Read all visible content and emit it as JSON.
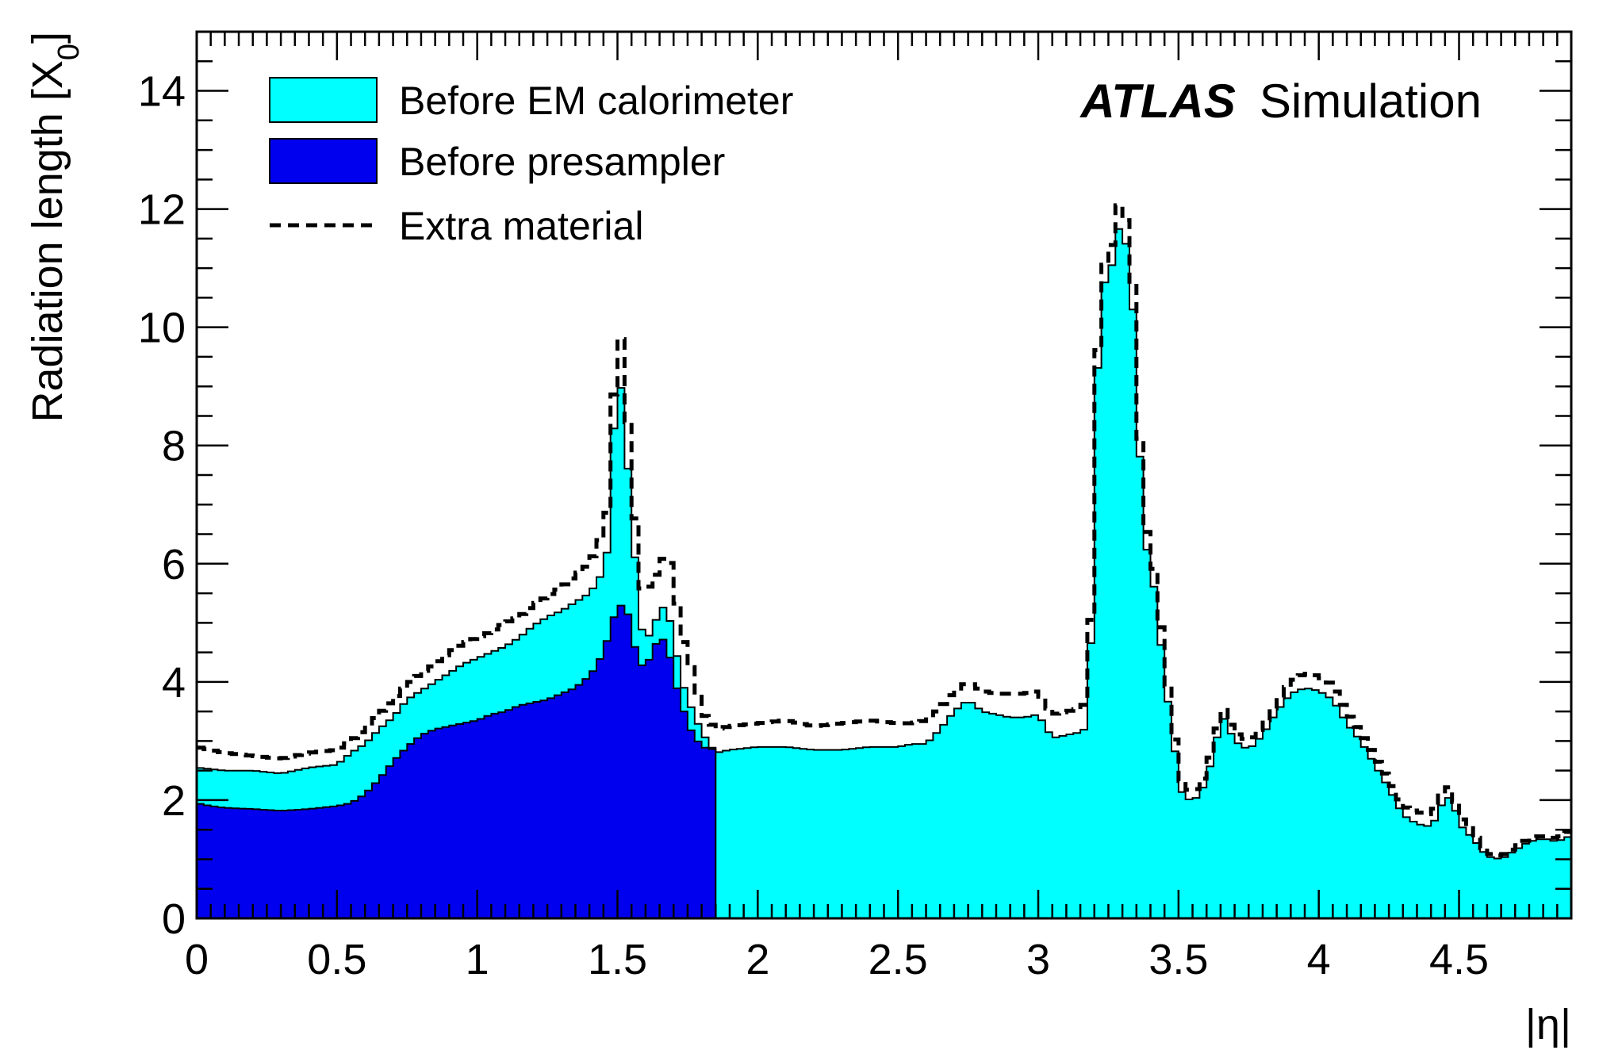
{
  "chart_data": {
    "type": "area",
    "x_label": "|η|",
    "y_label": "Radiation length [X",
    "y_label_sub": "0",
    "y_label_end": "]",
    "xlim": [
      0,
      4.9
    ],
    "ylim": [
      0,
      15
    ],
    "x_ticks": [
      0,
      0.5,
      1,
      1.5,
      2,
      2.5,
      3,
      3.5,
      4,
      4.5
    ],
    "x_tick_labels": [
      "0",
      "0.5",
      "1",
      "1.5",
      "2",
      "2.5",
      "3",
      "3.5",
      "4",
      "4.5"
    ],
    "y_ticks": [
      0,
      2,
      4,
      6,
      8,
      10,
      12,
      14
    ],
    "y_tick_labels": [
      "0",
      "2",
      "4",
      "6",
      "8",
      "10",
      "12",
      "14"
    ],
    "legend_position": "top-left",
    "annotation_bold": "ATLAS",
    "annotation_normal": "Simulation",
    "colors": {
      "before_em": "#00ffff",
      "before_presampler": "#0000ee",
      "extra": "#000000"
    },
    "series": [
      {
        "name": "Before EM calorimeter",
        "style": "filled",
        "points": [
          [
            0,
            2.55
          ],
          [
            0.1,
            2.5
          ],
          [
            0.2,
            2.5
          ],
          [
            0.3,
            2.45
          ],
          [
            0.4,
            2.55
          ],
          [
            0.5,
            2.6
          ],
          [
            0.55,
            2.8
          ],
          [
            0.6,
            2.95
          ],
          [
            0.65,
            3.2
          ],
          [
            0.7,
            3.4
          ],
          [
            0.75,
            3.7
          ],
          [
            0.8,
            3.85
          ],
          [
            0.85,
            4.0
          ],
          [
            0.9,
            4.15
          ],
          [
            0.95,
            4.3
          ],
          [
            1.0,
            4.4
          ],
          [
            1.05,
            4.5
          ],
          [
            1.1,
            4.6
          ],
          [
            1.15,
            4.75
          ],
          [
            1.2,
            4.95
          ],
          [
            1.25,
            5.1
          ],
          [
            1.3,
            5.2
          ],
          [
            1.35,
            5.35
          ],
          [
            1.4,
            5.5
          ],
          [
            1.43,
            5.7
          ],
          [
            1.46,
            6.0
          ],
          [
            1.48,
            7.5
          ],
          [
            1.5,
            9.6
          ],
          [
            1.52,
            8.6
          ],
          [
            1.55,
            6.9
          ],
          [
            1.58,
            5.0
          ],
          [
            1.6,
            4.7
          ],
          [
            1.63,
            4.9
          ],
          [
            1.65,
            5.3
          ],
          [
            1.68,
            5.2
          ],
          [
            1.7,
            4.75
          ],
          [
            1.73,
            4.0
          ],
          [
            1.76,
            3.6
          ],
          [
            1.8,
            3.15
          ],
          [
            1.85,
            2.8
          ],
          [
            1.9,
            2.85
          ],
          [
            2.0,
            2.9
          ],
          [
            2.1,
            2.9
          ],
          [
            2.2,
            2.85
          ],
          [
            2.3,
            2.85
          ],
          [
            2.4,
            2.9
          ],
          [
            2.5,
            2.9
          ],
          [
            2.55,
            2.95
          ],
          [
            2.6,
            2.95
          ],
          [
            2.65,
            3.2
          ],
          [
            2.7,
            3.5
          ],
          [
            2.75,
            3.7
          ],
          [
            2.8,
            3.5
          ],
          [
            2.85,
            3.45
          ],
          [
            2.9,
            3.4
          ],
          [
            2.95,
            3.4
          ],
          [
            3.0,
            3.45
          ],
          [
            3.05,
            3.05
          ],
          [
            3.1,
            3.1
          ],
          [
            3.15,
            3.15
          ],
          [
            3.18,
            3.25
          ],
          [
            3.2,
            7.0
          ],
          [
            3.22,
            10.7
          ],
          [
            3.25,
            10.8
          ],
          [
            3.28,
            11.4
          ],
          [
            3.3,
            12.1
          ],
          [
            3.32,
            11.0
          ],
          [
            3.34,
            10.2
          ],
          [
            3.36,
            8.0
          ],
          [
            3.38,
            6.5
          ],
          [
            3.4,
            5.8
          ],
          [
            3.42,
            5.5
          ],
          [
            3.45,
            4.0
          ],
          [
            3.48,
            3.2
          ],
          [
            3.5,
            2.2
          ],
          [
            3.55,
            1.95
          ],
          [
            3.6,
            2.3
          ],
          [
            3.63,
            2.95
          ],
          [
            3.66,
            3.4
          ],
          [
            3.7,
            3.0
          ],
          [
            3.75,
            2.85
          ],
          [
            3.8,
            3.1
          ],
          [
            3.85,
            3.5
          ],
          [
            3.9,
            3.8
          ],
          [
            3.95,
            3.9
          ],
          [
            4.0,
            3.85
          ],
          [
            4.05,
            3.7
          ],
          [
            4.1,
            3.3
          ],
          [
            4.15,
            3.0
          ],
          [
            4.2,
            2.6
          ],
          [
            4.25,
            2.2
          ],
          [
            4.3,
            1.75
          ],
          [
            4.35,
            1.6
          ],
          [
            4.4,
            1.55
          ],
          [
            4.43,
            1.8
          ],
          [
            4.45,
            2.1
          ],
          [
            4.48,
            1.95
          ],
          [
            4.5,
            1.6
          ],
          [
            4.55,
            1.35
          ],
          [
            4.6,
            1.05
          ],
          [
            4.65,
            1.0
          ],
          [
            4.7,
            1.15
          ],
          [
            4.75,
            1.3
          ],
          [
            4.8,
            1.35
          ],
          [
            4.85,
            1.3
          ],
          [
            4.9,
            1.4
          ]
        ]
      },
      {
        "name": "Before presampler",
        "style": "filled",
        "points": [
          [
            0,
            1.95
          ],
          [
            0.05,
            1.9
          ],
          [
            0.1,
            1.87
          ],
          [
            0.2,
            1.85
          ],
          [
            0.3,
            1.82
          ],
          [
            0.4,
            1.85
          ],
          [
            0.5,
            1.9
          ],
          [
            0.55,
            1.95
          ],
          [
            0.6,
            2.1
          ],
          [
            0.65,
            2.35
          ],
          [
            0.7,
            2.65
          ],
          [
            0.75,
            2.9
          ],
          [
            0.8,
            3.1
          ],
          [
            0.85,
            3.2
          ],
          [
            0.9,
            3.25
          ],
          [
            0.95,
            3.3
          ],
          [
            1.0,
            3.35
          ],
          [
            1.05,
            3.45
          ],
          [
            1.1,
            3.5
          ],
          [
            1.15,
            3.6
          ],
          [
            1.2,
            3.65
          ],
          [
            1.25,
            3.7
          ],
          [
            1.3,
            3.8
          ],
          [
            1.35,
            3.9
          ],
          [
            1.4,
            4.1
          ],
          [
            1.43,
            4.3
          ],
          [
            1.46,
            4.65
          ],
          [
            1.48,
            5.0
          ],
          [
            1.5,
            5.25
          ],
          [
            1.53,
            5.35
          ],
          [
            1.55,
            4.8
          ],
          [
            1.58,
            4.3
          ],
          [
            1.6,
            4.25
          ],
          [
            1.63,
            4.55
          ],
          [
            1.65,
            4.8
          ],
          [
            1.68,
            4.6
          ],
          [
            1.7,
            4.1
          ],
          [
            1.73,
            3.6
          ],
          [
            1.76,
            3.2
          ],
          [
            1.8,
            2.9
          ],
          [
            1.85,
            2.85
          ]
        ]
      },
      {
        "name": "Extra material",
        "style": "dashed",
        "points": [
          [
            0,
            2.9
          ],
          [
            0.1,
            2.8
          ],
          [
            0.2,
            2.75
          ],
          [
            0.3,
            2.7
          ],
          [
            0.4,
            2.8
          ],
          [
            0.5,
            2.85
          ],
          [
            0.55,
            3.0
          ],
          [
            0.6,
            3.2
          ],
          [
            0.65,
            3.45
          ],
          [
            0.7,
            3.7
          ],
          [
            0.75,
            3.95
          ],
          [
            0.8,
            4.15
          ],
          [
            0.85,
            4.3
          ],
          [
            0.9,
            4.5
          ],
          [
            0.95,
            4.65
          ],
          [
            1.0,
            4.75
          ],
          [
            1.05,
            4.85
          ],
          [
            1.1,
            5.0
          ],
          [
            1.15,
            5.1
          ],
          [
            1.2,
            5.3
          ],
          [
            1.25,
            5.45
          ],
          [
            1.3,
            5.6
          ],
          [
            1.35,
            5.8
          ],
          [
            1.4,
            6.0
          ],
          [
            1.43,
            6.3
          ],
          [
            1.46,
            6.7
          ],
          [
            1.48,
            8.0
          ],
          [
            1.5,
            10.3
          ],
          [
            1.52,
            9.5
          ],
          [
            1.55,
            7.6
          ],
          [
            1.58,
            5.6
          ],
          [
            1.6,
            5.55
          ],
          [
            1.63,
            5.7
          ],
          [
            1.65,
            6.0
          ],
          [
            1.68,
            6.2
          ],
          [
            1.7,
            5.7
          ],
          [
            1.73,
            4.8
          ],
          [
            1.76,
            4.3
          ],
          [
            1.8,
            3.5
          ],
          [
            1.85,
            3.2
          ],
          [
            1.9,
            3.25
          ],
          [
            2.0,
            3.3
          ],
          [
            2.1,
            3.35
          ],
          [
            2.2,
            3.25
          ],
          [
            2.3,
            3.3
          ],
          [
            2.4,
            3.35
          ],
          [
            2.5,
            3.3
          ],
          [
            2.55,
            3.3
          ],
          [
            2.6,
            3.35
          ],
          [
            2.65,
            3.55
          ],
          [
            2.7,
            3.85
          ],
          [
            2.75,
            4.0
          ],
          [
            2.8,
            3.85
          ],
          [
            2.85,
            3.8
          ],
          [
            2.9,
            3.8
          ],
          [
            2.95,
            3.8
          ],
          [
            3.0,
            3.85
          ],
          [
            3.05,
            3.45
          ],
          [
            3.1,
            3.5
          ],
          [
            3.15,
            3.55
          ],
          [
            3.18,
            3.7
          ],
          [
            3.2,
            7.3
          ],
          [
            3.22,
            11.0
          ],
          [
            3.25,
            11.1
          ],
          [
            3.28,
            11.8
          ],
          [
            3.3,
            12.5
          ],
          [
            3.32,
            11.4
          ],
          [
            3.34,
            10.6
          ],
          [
            3.36,
            8.3
          ],
          [
            3.38,
            6.8
          ],
          [
            3.4,
            6.1
          ],
          [
            3.42,
            5.8
          ],
          [
            3.45,
            4.3
          ],
          [
            3.48,
            3.4
          ],
          [
            3.5,
            2.4
          ],
          [
            3.55,
            2.1
          ],
          [
            3.6,
            2.45
          ],
          [
            3.63,
            3.1
          ],
          [
            3.66,
            3.55
          ],
          [
            3.7,
            3.15
          ],
          [
            3.75,
            3.0
          ],
          [
            3.8,
            3.25
          ],
          [
            3.85,
            3.65
          ],
          [
            3.9,
            4.0
          ],
          [
            3.95,
            4.15
          ],
          [
            4.0,
            4.1
          ],
          [
            4.05,
            3.95
          ],
          [
            4.1,
            3.5
          ],
          [
            4.15,
            3.15
          ],
          [
            4.2,
            2.75
          ],
          [
            4.25,
            2.35
          ],
          [
            4.3,
            1.9
          ],
          [
            4.35,
            1.8
          ],
          [
            4.4,
            1.75
          ],
          [
            4.43,
            2.0
          ],
          [
            4.45,
            2.3
          ],
          [
            4.48,
            2.1
          ],
          [
            4.5,
            1.75
          ],
          [
            4.55,
            1.45
          ],
          [
            4.6,
            1.1
          ],
          [
            4.65,
            1.05
          ],
          [
            4.7,
            1.2
          ],
          [
            4.75,
            1.35
          ],
          [
            4.8,
            1.4
          ],
          [
            4.85,
            1.35
          ],
          [
            4.9,
            1.5
          ]
        ]
      }
    ]
  }
}
